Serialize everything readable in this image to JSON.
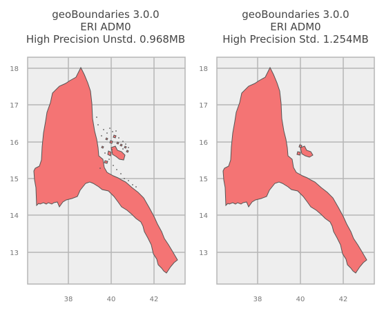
{
  "panels": [
    {
      "title_lines": [
        "geoBoundaries 3.0.0",
        "ERI ADM0",
        "High Precision Unstd. 0.968MB"
      ],
      "y_ticks": [
        "18",
        "17",
        "16",
        "15",
        "14",
        "13"
      ],
      "x_ticks": [
        "38",
        "40",
        "42"
      ]
    },
    {
      "title_lines": [
        "geoBoundaries 3.0.0",
        "ERI ADM0",
        "High Precision Std. 1.254MB"
      ],
      "y_ticks": [
        "18",
        "17",
        "16",
        "15",
        "14",
        "13"
      ],
      "x_ticks": [
        "38",
        "40",
        "42"
      ]
    }
  ],
  "colors": {
    "fill": "#f47474",
    "edge": "#555555",
    "panel_bg": "#eeeeee",
    "grid": "#b5b5b5"
  }
}
